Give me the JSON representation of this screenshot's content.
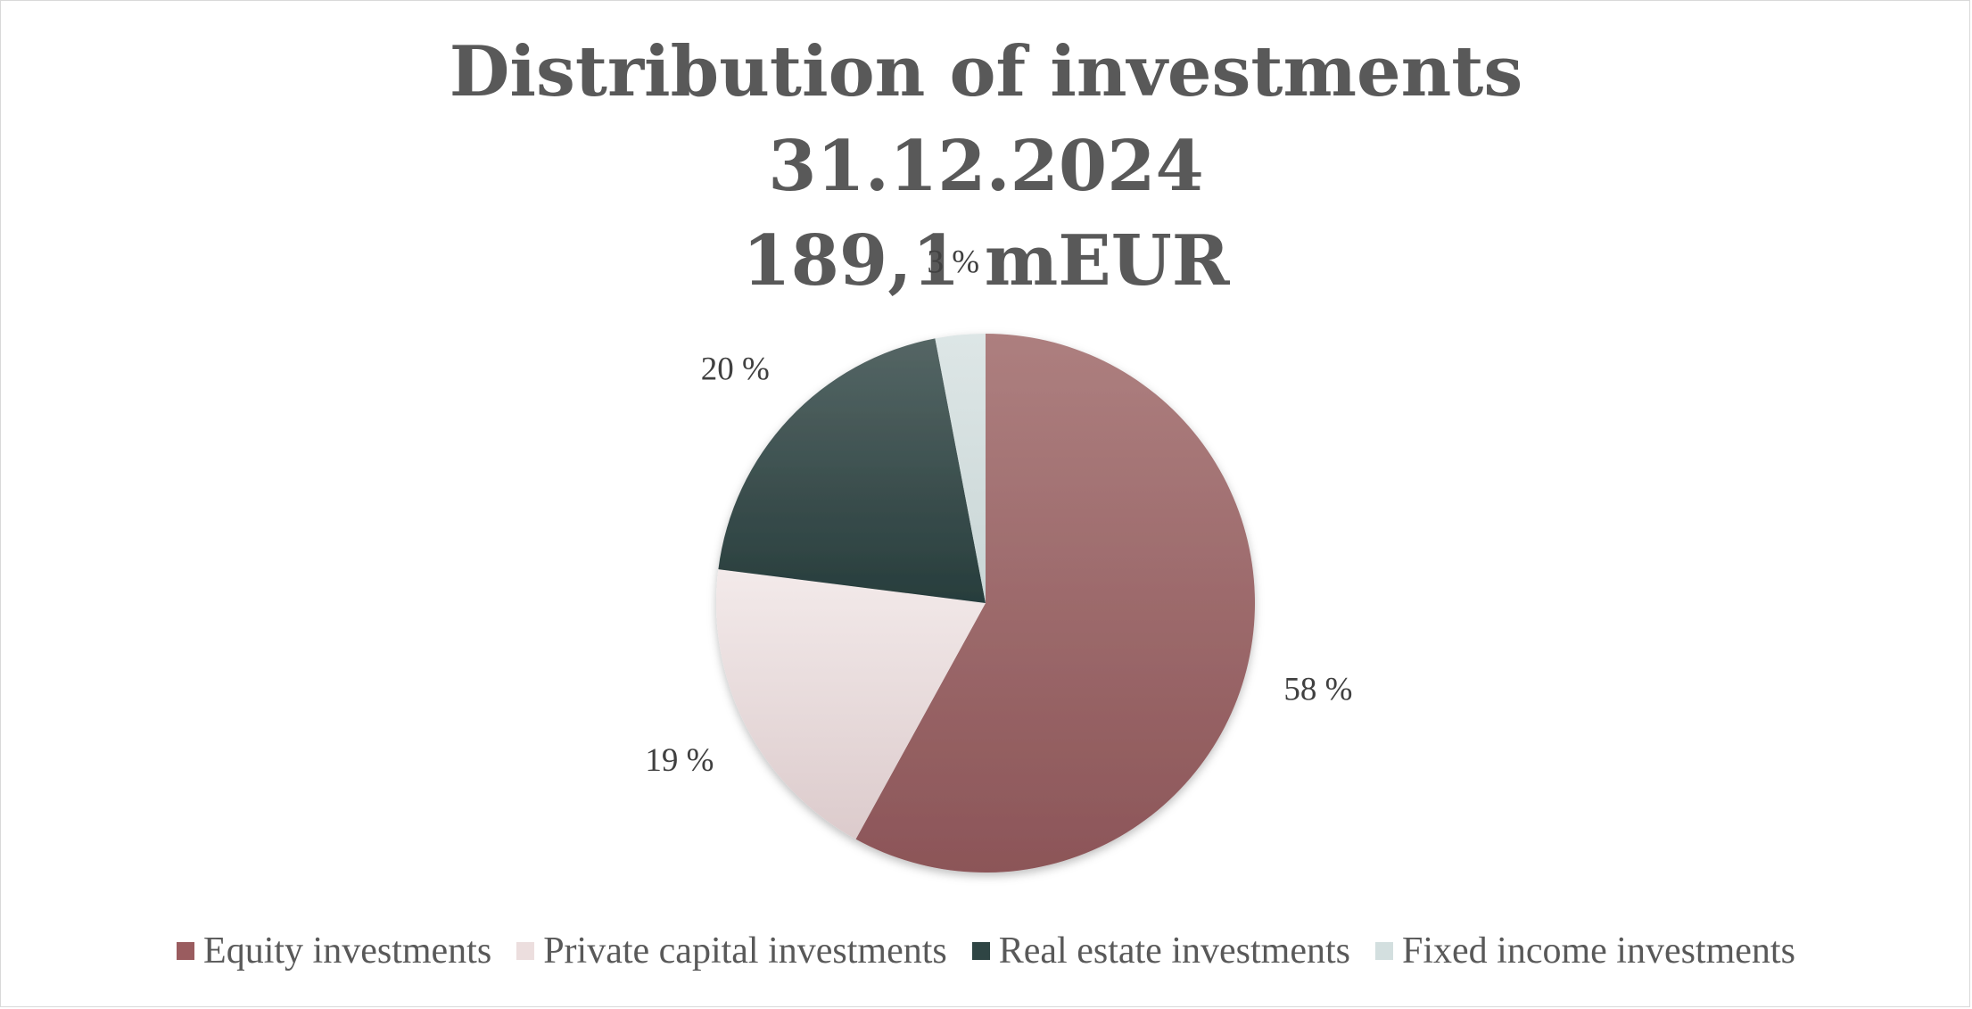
{
  "chart_data": {
    "type": "pie",
    "title_lines": [
      "Distribution of investments",
      "31.12.2024",
      "189,1 mEUR"
    ],
    "categories": [
      "Equity investments",
      "Private capital investments",
      "Real estate investments",
      "Fixed income investments"
    ],
    "values": [
      58,
      19,
      20,
      3
    ],
    "data_labels": [
      "58 %",
      "19 %",
      "20 %",
      "3 %"
    ],
    "colors": [
      "#9a5c5f",
      "#ecdede",
      "#2f4544",
      "#d3dfdf"
    ],
    "legend_position": "bottom"
  }
}
